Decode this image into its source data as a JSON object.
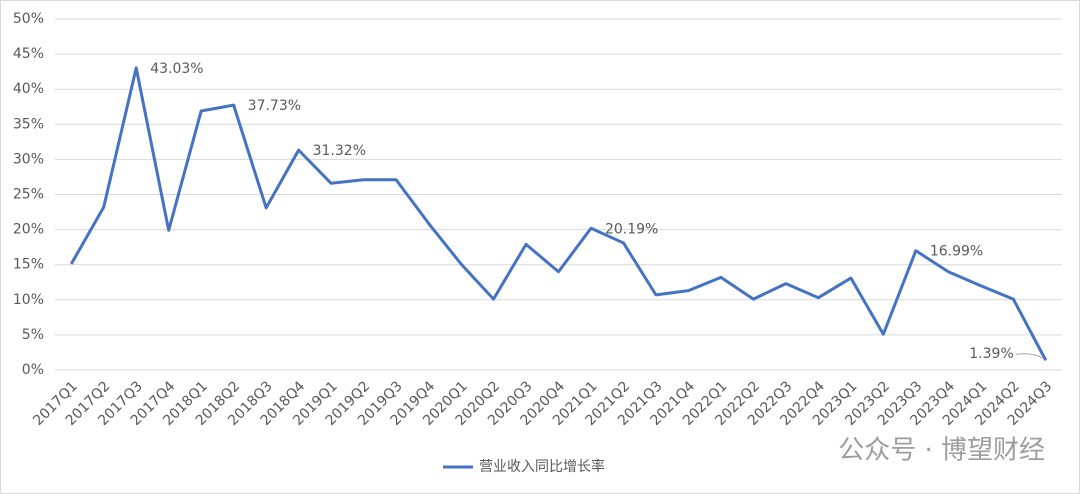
{
  "chart_data": {
    "type": "line",
    "categories": [
      "2017Q1",
      "2017Q2",
      "2017Q3",
      "2017Q4",
      "2018Q1",
      "2018Q2",
      "2018Q3",
      "2018Q4",
      "2019Q1",
      "2019Q2",
      "2019Q3",
      "2019Q4",
      "2020Q1",
      "2020Q2",
      "2020Q3",
      "2020Q4",
      "2021Q1",
      "2021Q2",
      "2021Q3",
      "2021Q4",
      "2022Q1",
      "2022Q2",
      "2022Q3",
      "2022Q4",
      "2023Q1",
      "2023Q2",
      "2023Q3",
      "2023Q4",
      "2024Q1",
      "2024Q2",
      "2024Q3"
    ],
    "series": [
      {
        "name": "营业收入同比增长率",
        "color": "#4472c4",
        "values": [
          15.1,
          23.2,
          43.03,
          19.9,
          36.9,
          37.73,
          23.1,
          31.32,
          26.6,
          27.1,
          27.1,
          20.9,
          15.1,
          10.1,
          17.9,
          14.0,
          20.19,
          18.1,
          10.7,
          11.3,
          13.2,
          10.1,
          12.3,
          10.3,
          13.1,
          5.1,
          16.99,
          14.0,
          12.0,
          10.1,
          1.39
        ],
        "value_labels": [
          null,
          null,
          "43.03%",
          null,
          null,
          "37.73%",
          null,
          "31.32%",
          null,
          null,
          null,
          null,
          null,
          null,
          null,
          null,
          "20.19%",
          null,
          null,
          null,
          null,
          null,
          null,
          null,
          null,
          null,
          "16.99%",
          null,
          null,
          null,
          "1.39%"
        ]
      }
    ],
    "ylim": [
      0,
      50
    ],
    "yticks": [
      {
        "value": 0,
        "label": "0%"
      },
      {
        "value": 5,
        "label": "5%"
      },
      {
        "value": 10,
        "label": "10%"
      },
      {
        "value": 15,
        "label": "15%"
      },
      {
        "value": 20,
        "label": "20%"
      },
      {
        "value": 25,
        "label": "25%"
      },
      {
        "value": 30,
        "label": "30%"
      },
      {
        "value": 35,
        "label": "35%"
      },
      {
        "value": 40,
        "label": "40%"
      },
      {
        "value": 45,
        "label": "45%"
      },
      {
        "value": 50,
        "label": "50%"
      }
    ],
    "grid": true,
    "legend": "bottom",
    "watermark": "公众号 · 博望财经"
  }
}
